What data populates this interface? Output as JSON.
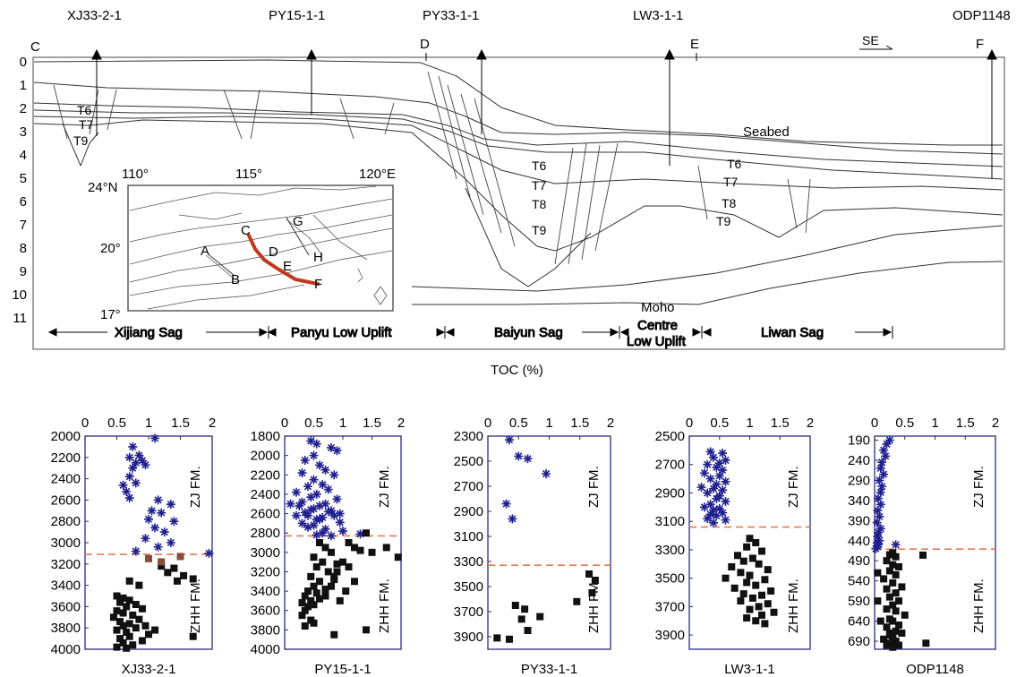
{
  "section": {
    "wells": [
      {
        "name": "XJ33-2-1"
      },
      {
        "name": "PY15-1-1"
      },
      {
        "name": "PY33-1-1"
      },
      {
        "name": "LW3-1-1"
      },
      {
        "name": "ODP1148"
      }
    ],
    "section_points": [
      "C",
      "D",
      "E",
      "F"
    ],
    "direction_label": "SE",
    "depth_ticks": [
      "0",
      "1",
      "2",
      "3",
      "4",
      "5",
      "6",
      "7",
      "8",
      "9",
      "10",
      "11"
    ],
    "seabed_label": "Seabed",
    "moho_label": "Moho",
    "horizon_labels": [
      "T6",
      "T7",
      "T8",
      "T9"
    ],
    "units": [
      {
        "name": "Xijiang Sag"
      },
      {
        "name": "Panyu Low Uplift"
      },
      {
        "name": "Baiyun Sag"
      },
      {
        "name": "Centre Low Uplift"
      },
      {
        "name": "Liwan Sag"
      }
    ],
    "unit_lines": {
      "centre_1": "Centre",
      "centre_2": "Low Uplift"
    }
  },
  "inset_map": {
    "lon_labels": [
      "110°",
      "115°",
      "120°E"
    ],
    "lat_labels": [
      "24°N",
      "20°",
      "17°"
    ],
    "points": [
      "A",
      "B",
      "C",
      "D",
      "E",
      "F",
      "G",
      "H"
    ]
  },
  "toc_label": "TOC (%)",
  "colors": {
    "zj_star": "#1f1f8f",
    "zhh_square": "#111111",
    "boundary_dash": "#e07b56",
    "section_line": "#c0391b",
    "brown_square": "#8b4a3a",
    "frame": "#3b3b8f"
  },
  "chart_data": [
    {
      "type": "scatter",
      "title": "XJ33-2-1",
      "xlabel": "TOC (%)",
      "xlim": [
        0,
        2
      ],
      "ylim": [
        2000,
        4000
      ],
      "y_inverted": true,
      "xticks": [
        "0",
        "0.5",
        "1",
        "1.5",
        "2"
      ],
      "yticks": [
        "2000",
        "2200",
        "2400",
        "2600",
        "2800",
        "3000",
        "3200",
        "3400",
        "3600",
        "3800",
        "4000"
      ],
      "formations": [
        "ZJ FM.",
        "ZHH FM."
      ],
      "boundary_depth": 3110,
      "series": [
        {
          "marker": "star",
          "x": [
            1.1,
            0.75,
            0.85,
            0.7,
            0.9,
            0.8,
            0.95,
            0.75,
            0.7,
            0.8,
            0.6,
            0.65,
            0.7,
            1.15,
            1.35,
            1.05,
            1.2,
            1.0,
            1.4,
            1.1,
            1.25,
            0.95,
            1.35,
            1.15,
            0.8,
            1.95
          ],
          "y": [
            2020,
            2100,
            2180,
            2200,
            2230,
            2250,
            2270,
            2300,
            2380,
            2440,
            2460,
            2520,
            2580,
            2600,
            2640,
            2700,
            2720,
            2780,
            2800,
            2860,
            2900,
            2960,
            3000,
            3040,
            3080,
            3100
          ]
        },
        {
          "marker": "square",
          "x": [
            0.5,
            0.6,
            0.7,
            0.55,
            0.8,
            0.65,
            0.9,
            0.5,
            0.6,
            0.75,
            0.45,
            0.85,
            0.55,
            0.7,
            0.6,
            0.8,
            0.5,
            0.65,
            1.0,
            0.7,
            0.55,
            0.9,
            0.6,
            0.75,
            0.5,
            0.65,
            1.2,
            1.4,
            1.3,
            1.55,
            1.7,
            1.45,
            1.7,
            1.1,
            0.95,
            0.85,
            0.7
          ],
          "y": [
            3500,
            3520,
            3540,
            3560,
            3580,
            3600,
            3620,
            3640,
            3660,
            3680,
            3700,
            3720,
            3740,
            3760,
            3780,
            3800,
            3820,
            3840,
            3860,
            3880,
            3900,
            3920,
            3940,
            3960,
            3980,
            3990,
            3220,
            3240,
            3280,
            3310,
            3340,
            3360,
            3880,
            3820,
            3780,
            3400,
            3360
          ]
        },
        {
          "marker": "square-brown",
          "x": [
            1.0,
            1.2,
            1.5
          ],
          "y": [
            3150,
            3180,
            3130
          ]
        }
      ]
    },
    {
      "type": "scatter",
      "title": "PY15-1-1",
      "xlabel": "TOC (%)",
      "xlim": [
        0,
        2
      ],
      "ylim": [
        1800,
        4000
      ],
      "y_inverted": true,
      "xticks": [
        "0",
        "0.5",
        "1",
        "1.5",
        "2"
      ],
      "yticks": [
        "1800",
        "2000",
        "2200",
        "2400",
        "2600",
        "2800",
        "3000",
        "3200",
        "3400",
        "3600",
        "3800",
        "4000"
      ],
      "formations": [
        "ZJ FM.",
        "ZHH FM."
      ],
      "boundary_depth": 2830,
      "series": [
        {
          "marker": "star",
          "x": [
            0.45,
            0.55,
            0.8,
            0.9,
            0.5,
            0.35,
            0.6,
            0.7,
            0.3,
            0.85,
            0.5,
            0.65,
            0.4,
            0.75,
            0.2,
            0.55,
            0.45,
            0.9,
            0.3,
            0.7,
            0.6,
            0.5,
            0.8,
            0.35,
            0.95,
            0.4,
            0.65,
            0.55,
            0.1,
            0.25,
            0.45,
            0.75,
            0.85,
            0.6,
            0.3,
            0.5,
            0.7,
            1.0,
            0.95,
            0.4,
            0.2,
            0.65,
            0.55,
            0.8,
            1.3
          ],
          "y": [
            1850,
            1880,
            1920,
            1950,
            2000,
            2050,
            2100,
            2150,
            2180,
            2200,
            2250,
            2300,
            2320,
            2350,
            2380,
            2400,
            2430,
            2450,
            2480,
            2500,
            2520,
            2550,
            2570,
            2590,
            2600,
            2620,
            2640,
            2660,
            2500,
            2520,
            2560,
            2580,
            2620,
            2660,
            2700,
            2720,
            2760,
            2780,
            2690,
            2740,
            2620,
            2800,
            2820,
            2830,
            2810
          ]
        },
        {
          "marker": "square",
          "x": [
            0.6,
            0.7,
            0.8,
            0.5,
            0.65,
            0.9,
            0.55,
            0.75,
            0.45,
            0.85,
            0.6,
            0.5,
            0.7,
            0.4,
            0.55,
            0.35,
            0.6,
            0.45,
            0.3,
            0.5,
            0.4,
            0.35,
            0.3,
            0.45,
            0.5,
            0.35,
            1.1,
            1.2,
            1.3,
            1.5,
            1.75,
            1.95,
            1.0,
            1.1,
            0.85,
            1.2,
            0.9,
            0.8,
            0.7,
            0.95,
            1.05,
            1.4,
            1.4,
            0.85
          ],
          "y": [
            2900,
            2950,
            3000,
            3050,
            3100,
            3120,
            3150,
            3200,
            3250,
            3280,
            3300,
            3350,
            3380,
            3400,
            3420,
            3450,
            3480,
            3500,
            3520,
            3540,
            3560,
            3600,
            3650,
            3700,
            3730,
            3760,
            2900,
            2950,
            2980,
            3000,
            2950,
            3050,
            3100,
            3150,
            3250,
            3300,
            3200,
            3350,
            3450,
            3500,
            3400,
            3800,
            2800,
            3850
          ]
        }
      ]
    },
    {
      "type": "scatter",
      "title": "PY33-1-1",
      "xlabel": "TOC (%)",
      "xlim": [
        0,
        2
      ],
      "ylim": [
        2300,
        4000
      ],
      "y_inverted": true,
      "xticks": [
        "0",
        "0.5",
        "1",
        "1.5",
        "2"
      ],
      "yticks": [
        "2300",
        "2500",
        "2700",
        "2900",
        "3100",
        "3300",
        "3500",
        "3700",
        "3900"
      ],
      "formations": [
        "ZJ FM.",
        "ZHH FM."
      ],
      "boundary_depth": 3330,
      "series": [
        {
          "marker": "star",
          "x": [
            0.35,
            0.5,
            0.65,
            0.95,
            0.3,
            0.4
          ],
          "y": [
            2330,
            2460,
            2480,
            2600,
            2840,
            2960
          ]
        },
        {
          "marker": "square",
          "x": [
            0.45,
            0.6,
            0.55,
            0.85,
            0.65,
            0.35,
            0.15,
            1.65,
            1.75,
            1.7,
            1.45
          ],
          "y": [
            3650,
            3680,
            3760,
            3740,
            3850,
            3920,
            3910,
            3400,
            3450,
            3550,
            3620
          ]
        }
      ]
    },
    {
      "type": "scatter",
      "title": "LW3-1-1",
      "xlabel": "TOC (%)",
      "xlim": [
        0,
        2
      ],
      "ylim": [
        2500,
        4000
      ],
      "y_inverted": true,
      "xticks": [
        "0",
        "0.5",
        "1",
        "1.5",
        "2"
      ],
      "yticks": [
        "2500",
        "2700",
        "2900",
        "3100",
        "3300",
        "3500",
        "3700",
        "3900"
      ],
      "formations": [
        "ZJ FM.",
        "ZHH FM."
      ],
      "boundary_depth": 3140,
      "series": [
        {
          "marker": "star",
          "x": [
            0.35,
            0.55,
            0.4,
            0.6,
            0.5,
            0.3,
            0.45,
            0.55,
            0.25,
            0.5,
            0.35,
            0.6,
            0.45,
            0.2,
            0.4,
            0.55,
            0.3,
            0.5,
            0.45,
            0.6,
            0.35,
            0.25,
            0.5,
            0.4,
            0.55,
            0.35,
            0.45,
            0.3,
            0.6,
            0.4
          ],
          "y": [
            2610,
            2620,
            2650,
            2670,
            2690,
            2700,
            2720,
            2740,
            2760,
            2780,
            2800,
            2820,
            2840,
            2860,
            2870,
            2880,
            2900,
            2920,
            2940,
            2960,
            2980,
            3000,
            3010,
            3020,
            3040,
            3050,
            3060,
            3080,
            3090,
            3110
          ]
        },
        {
          "marker": "square",
          "x": [
            1.0,
            1.1,
            0.95,
            1.2,
            0.8,
            1.05,
            0.9,
            1.15,
            0.7,
            1.3,
            0.85,
            1.0,
            0.6,
            1.25,
            0.95,
            1.1,
            0.75,
            1.35,
            0.9,
            1.2,
            1.05,
            0.85,
            1.3,
            1.15,
            1.0,
            1.4,
            1.2,
            0.95,
            1.1,
            1.25
          ],
          "y": [
            3220,
            3250,
            3280,
            3310,
            3340,
            3360,
            3380,
            3400,
            3420,
            3440,
            3460,
            3480,
            3500,
            3510,
            3530,
            3550,
            3570,
            3590,
            3610,
            3620,
            3640,
            3660,
            3680,
            3700,
            3720,
            3740,
            3760,
            3780,
            3800,
            3820
          ]
        }
      ]
    },
    {
      "type": "scatter",
      "title": "ODP1148",
      "xlabel": "TOC (%)",
      "xlim": [
        0,
        2
      ],
      "ylim": [
        180,
        710
      ],
      "y_inverted": true,
      "xticks": [
        "0",
        "0.5",
        "1",
        "1.5",
        "2"
      ],
      "yticks": [
        "190",
        "240",
        "290",
        "340",
        "390",
        "440",
        "490",
        "540",
        "590",
        "640",
        "690"
      ],
      "formations": [
        "ZJ FM.",
        "ZHH FM."
      ],
      "boundary_depth": 461,
      "series": [
        {
          "marker": "star",
          "x": [
            0.25,
            0.2,
            0.15,
            0.18,
            0.12,
            0.1,
            0.15,
            0.08,
            0.12,
            0.1,
            0.06,
            0.1,
            0.05,
            0.08,
            0.04,
            0.1,
            0.06,
            0.05,
            0.08,
            0.04,
            0.06,
            0.05,
            0.35,
            0.02
          ],
          "y": [
            190,
            200,
            215,
            230,
            245,
            260,
            275,
            290,
            305,
            320,
            335,
            350,
            365,
            380,
            395,
            410,
            420,
            430,
            440,
            445,
            450,
            455,
            450,
            460
          ]
        },
        {
          "marker": "square",
          "x": [
            0.3,
            0.25,
            0.35,
            0.2,
            0.3,
            0.4,
            0.25,
            0.35,
            0.15,
            0.3,
            0.45,
            0.2,
            0.35,
            0.25,
            0.4,
            0.3,
            0.2,
            0.35,
            0.5,
            0.25,
            0.3,
            0.4,
            0.2,
            0.35,
            0.45,
            0.25,
            0.3,
            0.15,
            0.35,
            0.25,
            0.4,
            0.3,
            0.2,
            0.35,
            0.3,
            0.25,
            0.8,
            0.85,
            0.05,
            0.05,
            0.1
          ],
          "y": [
            470,
            475,
            480,
            490,
            500,
            505,
            515,
            525,
            535,
            545,
            555,
            560,
            570,
            580,
            590,
            600,
            610,
            615,
            625,
            635,
            640,
            650,
            655,
            665,
            670,
            675,
            680,
            685,
            690,
            695,
            700,
            705,
            700,
            690,
            680,
            670,
            476,
            695,
            520,
            590,
            640
          ]
        }
      ]
    }
  ]
}
